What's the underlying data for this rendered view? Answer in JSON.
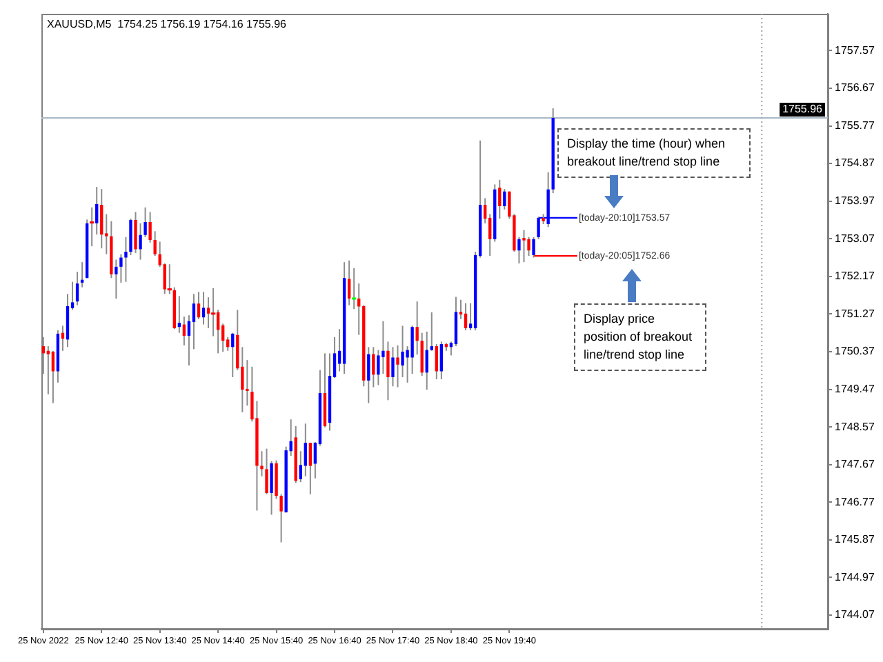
{
  "chart_data": {
    "type": "candlestick",
    "title": "XAUUSD,M5  1754.25 1756.19 1754.16 1755.96",
    "x": [
      "2022-11-25T11:40",
      "2022-11-25T11:45",
      "2022-11-25T11:50",
      "2022-11-25T11:55",
      "2022-11-25T12:00",
      "2022-11-25T12:05",
      "2022-11-25T12:10",
      "2022-11-25T12:15",
      "2022-11-25T12:20",
      "2022-11-25T12:25",
      "2022-11-25T12:30",
      "2022-11-25T12:35",
      "2022-11-25T12:40",
      "2022-11-25T12:45",
      "2022-11-25T12:50",
      "2022-11-25T12:55",
      "2022-11-25T13:00",
      "2022-11-25T13:05",
      "2022-11-25T13:10",
      "2022-11-25T13:15",
      "2022-11-25T13:20",
      "2022-11-25T13:25",
      "2022-11-25T13:30",
      "2022-11-25T13:35",
      "2022-11-25T13:40",
      "2022-11-25T13:45",
      "2022-11-25T13:50",
      "2022-11-25T13:55",
      "2022-11-25T14:00",
      "2022-11-25T14:05",
      "2022-11-25T14:10",
      "2022-11-25T14:15",
      "2022-11-25T14:20",
      "2022-11-25T14:25",
      "2022-11-25T14:30",
      "2022-11-25T14:35",
      "2022-11-25T14:40",
      "2022-11-25T14:45",
      "2022-11-25T14:50",
      "2022-11-25T14:55",
      "2022-11-25T15:00",
      "2022-11-25T15:05",
      "2022-11-25T15:10",
      "2022-11-25T15:15",
      "2022-11-25T15:20",
      "2022-11-25T15:25",
      "2022-11-25T15:30",
      "2022-11-25T15:35",
      "2022-11-25T15:40",
      "2022-11-25T15:45",
      "2022-11-25T15:50",
      "2022-11-25T15:55",
      "2022-11-25T16:00",
      "2022-11-25T16:05",
      "2022-11-25T16:10",
      "2022-11-25T16:15",
      "2022-11-25T16:20",
      "2022-11-25T16:25",
      "2022-11-25T16:30",
      "2022-11-25T16:35",
      "2022-11-25T16:40",
      "2022-11-25T16:45",
      "2022-11-25T16:50",
      "2022-11-25T16:55",
      "2022-11-25T17:00",
      "2022-11-25T17:05",
      "2022-11-25T17:10",
      "2022-11-25T17:15",
      "2022-11-25T17:20",
      "2022-11-25T17:25",
      "2022-11-25T17:30",
      "2022-11-25T17:35",
      "2022-11-25T17:40",
      "2022-11-25T17:45",
      "2022-11-25T17:50",
      "2022-11-25T17:55",
      "2022-11-25T18:00",
      "2022-11-25T18:05",
      "2022-11-25T18:10",
      "2022-11-25T18:15",
      "2022-11-25T18:20",
      "2022-11-25T18:25",
      "2022-11-25T18:30",
      "2022-11-25T18:35",
      "2022-11-25T18:40",
      "2022-11-25T18:45",
      "2022-11-25T18:50",
      "2022-11-25T18:55",
      "2022-11-25T19:00",
      "2022-11-25T19:05",
      "2022-11-25T19:10",
      "2022-11-25T19:15",
      "2022-11-25T19:20",
      "2022-11-25T19:25",
      "2022-11-25T19:30",
      "2022-11-25T19:35",
      "2022-11-25T19:40",
      "2022-11-25T19:45",
      "2022-11-25T19:50",
      "2022-11-25T19:55",
      "2022-11-25T20:00",
      "2022-11-25T20:05",
      "2022-11-25T20:10",
      "2022-11-25T20:15",
      "2022-11-25T20:20",
      "2022-11-25T20:25"
    ],
    "ohlc": [
      [
        1750.5,
        1750.72,
        1749.84,
        1750.33
      ],
      [
        1750.39,
        1750.5,
        1749.35,
        1750.31
      ],
      [
        1750.37,
        1750.39,
        1749.14,
        1749.9
      ],
      [
        1749.9,
        1750.88,
        1749.63,
        1750.8
      ],
      [
        1750.82,
        1750.99,
        1750.39,
        1750.68
      ],
      [
        1750.66,
        1751.75,
        1750.48,
        1751.46
      ],
      [
        1751.41,
        1752.04,
        1751.37,
        1751.55
      ],
      [
        1751.57,
        1752.28,
        1751.48,
        1752.0
      ],
      [
        1752.02,
        1752.51,
        1751.91,
        1752.09
      ],
      [
        1752.13,
        1753.53,
        1752.13,
        1753.44
      ],
      [
        1753.46,
        1753.82,
        1752.89,
        1753.42
      ],
      [
        1753.44,
        1754.31,
        1753.17,
        1753.9
      ],
      [
        1753.88,
        1754.26,
        1752.84,
        1753.17
      ],
      [
        1753.2,
        1753.66,
        1752.7,
        1753.13
      ],
      [
        1753.13,
        1753.49,
        1752.13,
        1752.22
      ],
      [
        1752.22,
        1752.57,
        1751.64,
        1752.4
      ],
      [
        1752.4,
        1752.7,
        1752.02,
        1752.62
      ],
      [
        1752.62,
        1753.11,
        1752.04,
        1752.76
      ],
      [
        1752.76,
        1753.55,
        1752.68,
        1753.52
      ],
      [
        1753.52,
        1753.71,
        1752.73,
        1752.82
      ],
      [
        1752.82,
        1753.44,
        1752.57,
        1753.16
      ],
      [
        1753.16,
        1753.82,
        1753.11,
        1753.47
      ],
      [
        1753.47,
        1753.71,
        1752.98,
        1753.04
      ],
      [
        1753.04,
        1753.25,
        1752.66,
        1752.7
      ],
      [
        1752.7,
        1753.0,
        1752.4,
        1752.44
      ],
      [
        1752.46,
        1752.48,
        1751.75,
        1751.86
      ],
      [
        1751.86,
        1752.46,
        1751.75,
        1751.83
      ],
      [
        1751.84,
        1751.91,
        1750.91,
        1750.93
      ],
      [
        1750.96,
        1751.7,
        1750.82,
        1751.06
      ],
      [
        1751.02,
        1751.21,
        1750.52,
        1750.75
      ],
      [
        1750.75,
        1751.24,
        1750.04,
        1751.1
      ],
      [
        1751.08,
        1751.75,
        1750.43,
        1751.52
      ],
      [
        1751.52,
        1751.8,
        1751.15,
        1751.19
      ],
      [
        1751.19,
        1751.8,
        1751.02,
        1751.42
      ],
      [
        1751.42,
        1751.67,
        1750.93,
        1751.28
      ],
      [
        1751.28,
        1751.89,
        1750.74,
        1751.24
      ],
      [
        1751.31,
        1751.37,
        1750.33,
        1750.89
      ],
      [
        1751.0,
        1751.04,
        1750.37,
        1750.63
      ],
      [
        1750.66,
        1750.72,
        1750.39,
        1750.48
      ],
      [
        1750.48,
        1750.82,
        1749.76,
        1750.8
      ],
      [
        1750.77,
        1751.37,
        1749.93,
        1749.97
      ],
      [
        1750.01,
        1750.48,
        1748.92,
        1749.46
      ],
      [
        1749.48,
        1750.17,
        1749.08,
        1749.43
      ],
      [
        1749.41,
        1750.01,
        1748.7,
        1748.75
      ],
      [
        1748.78,
        1749.19,
        1746.57,
        1747.64
      ],
      [
        1747.64,
        1747.99,
        1747.39,
        1747.56
      ],
      [
        1747.56,
        1748.05,
        1746.96,
        1746.99
      ],
      [
        1746.99,
        1747.75,
        1746.47,
        1747.7
      ],
      [
        1747.7,
        1747.77,
        1746.85,
        1746.92
      ],
      [
        1746.92,
        1746.96,
        1745.81,
        1746.55
      ],
      [
        1746.53,
        1748.1,
        1746.52,
        1748.01
      ],
      [
        1747.99,
        1748.75,
        1747.88,
        1748.23
      ],
      [
        1748.32,
        1748.59,
        1747.23,
        1747.28
      ],
      [
        1747.32,
        1747.99,
        1747.25,
        1747.66
      ],
      [
        1747.64,
        1748.65,
        1747.39,
        1748.19
      ],
      [
        1748.19,
        1748.19,
        1746.96,
        1747.64
      ],
      [
        1747.69,
        1748.21,
        1747.34,
        1748.19
      ],
      [
        1748.16,
        1749.93,
        1748.12,
        1749.38
      ],
      [
        1749.38,
        1750.33,
        1748.56,
        1748.59
      ],
      [
        1748.67,
        1750.33,
        1748.48,
        1749.79
      ],
      [
        1749.76,
        1750.72,
        1749.74,
        1750.33
      ],
      [
        1750.08,
        1750.91,
        1749.9,
        1750.39
      ],
      [
        1750.08,
        1752.51,
        1749.84,
        1752.13
      ],
      [
        1752.11,
        1752.55,
        1751.48,
        1751.64
      ],
      [
        1751.64,
        1752.37,
        1751.39,
        1751.64
      ],
      [
        1751.64,
        1752.0,
        1750.77,
        1751.45
      ],
      [
        1751.46,
        1751.48,
        1749.54,
        1749.68
      ],
      [
        1749.68,
        1750.48,
        1749.14,
        1750.31
      ],
      [
        1750.31,
        1750.48,
        1749.52,
        1749.82
      ],
      [
        1749.82,
        1750.41,
        1749.57,
        1750.28
      ],
      [
        1750.24,
        1751.1,
        1749.84,
        1750.39
      ],
      [
        1750.39,
        1750.61,
        1749.21,
        1749.76
      ],
      [
        1749.76,
        1750.48,
        1749.54,
        1750.23
      ],
      [
        1750.23,
        1750.52,
        1749.52,
        1750.06
      ],
      [
        1750.04,
        1750.99,
        1749.76,
        1750.37
      ],
      [
        1750.23,
        1750.5,
        1749.63,
        1750.41
      ],
      [
        1750.23,
        1750.99,
        1749.84,
        1750.96
      ],
      [
        1750.96,
        1751.57,
        1750.3,
        1750.63
      ],
      [
        1750.63,
        1750.82,
        1749.79,
        1749.87
      ],
      [
        1749.87,
        1750.85,
        1749.46,
        1750.41
      ],
      [
        1750.41,
        1751.31,
        1750.39,
        1750.5
      ],
      [
        1750.5,
        1750.55,
        1749.71,
        1749.9
      ],
      [
        1749.9,
        1750.61,
        1749.71,
        1750.55
      ],
      [
        1750.55,
        1750.58,
        1750.39,
        1750.48
      ],
      [
        1750.48,
        1750.61,
        1750.28,
        1750.58
      ],
      [
        1750.55,
        1751.68,
        1750.5,
        1751.32
      ],
      [
        1751.32,
        1751.61,
        1751.15,
        1751.26
      ],
      [
        1751.28,
        1751.53,
        1750.88,
        1750.93
      ],
      [
        1750.93,
        1751.53,
        1750.88,
        1751.04
      ],
      [
        1750.93,
        1752.76,
        1750.88,
        1752.68
      ],
      [
        1752.66,
        1755.42,
        1752.62,
        1753.88
      ],
      [
        1753.88,
        1754.04,
        1753.44,
        1753.55
      ],
      [
        1753.57,
        1753.66,
        1752.66,
        1753.06
      ],
      [
        1753.06,
        1754.37,
        1753.0,
        1754.25
      ],
      [
        1754.29,
        1754.48,
        1753.55,
        1753.85
      ],
      [
        1753.85,
        1754.26,
        1753.77,
        1754.2
      ],
      [
        1754.2,
        1754.2,
        1753.55,
        1753.6
      ],
      [
        1753.63,
        1753.66,
        1752.76,
        1752.79
      ],
      [
        1752.79,
        1753.11,
        1752.48,
        1753.06
      ],
      [
        1753.09,
        1753.28,
        1752.51,
        1753.03
      ],
      [
        1753.06,
        1753.11,
        1752.66,
        1752.79
      ],
      [
        1752.68,
        1753.11,
        1752.62,
        1753.06
      ],
      [
        1753.11,
        1753.6,
        1753.06,
        1753.57
      ],
      [
        1753.57,
        1753.66,
        1753.42,
        1753.49
      ],
      [
        1753.42,
        1754.66,
        1753.35,
        1754.25
      ],
      [
        1754.25,
        1756.19,
        1754.16,
        1755.96
      ]
    ],
    "colors": [
      "#ff0000",
      "#ff0000",
      "#ff0000",
      "#0000ff",
      "#ff0000",
      "#0000ff",
      "#0000ff",
      "#0000ff",
      "#0000ff",
      "#0000ff",
      "#ff0000",
      "#0000ff",
      "#ff0000",
      "#ff0000",
      "#ff0000",
      "#0000ff",
      "#0000ff",
      "#0000ff",
      "#0000ff",
      "#ff0000",
      "#0000ff",
      "#0000ff",
      "#ff0000",
      "#ff0000",
      "#ff0000",
      "#ff0000",
      "#ff0000",
      "#ff0000",
      "#0000ff",
      "#ff0000",
      "#0000ff",
      "#0000ff",
      "#ff0000",
      "#0000ff",
      "#ff0000",
      "#ff0000",
      "#ff0000",
      "#ff0000",
      "#ff0000",
      "#0000ff",
      "#ff0000",
      "#ff0000",
      "#ff0000",
      "#ff0000",
      "#ff0000",
      "#ff0000",
      "#ff0000",
      "#0000ff",
      "#ff0000",
      "#ff0000",
      "#0000ff",
      "#0000ff",
      "#ff0000",
      "#0000ff",
      "#0000ff",
      "#ff0000",
      "#0000ff",
      "#0000ff",
      "#ff0000",
      "#0000ff",
      "#0000ff",
      "#0000ff",
      "#0000ff",
      "#ff0000",
      "#00ff00",
      "#ff0000",
      "#ff0000",
      "#0000ff",
      "#ff0000",
      "#0000ff",
      "#0000ff",
      "#ff0000",
      "#0000ff",
      "#ff0000",
      "#0000ff",
      "#0000ff",
      "#0000ff",
      "#ff0000",
      "#ff0000",
      "#0000ff",
      "#0000ff",
      "#ff0000",
      "#0000ff",
      "#ff0000",
      "#0000ff",
      "#0000ff",
      "#ff0000",
      "#ff0000",
      "#0000ff",
      "#0000ff",
      "#0000ff",
      "#ff0000",
      "#ff0000",
      "#0000ff",
      "#ff0000",
      "#0000ff",
      "#ff0000",
      "#ff0000",
      "#0000ff",
      "#ff0000",
      "#ff0000",
      "#0000ff",
      "#0000ff",
      "#ff0000",
      "#0000ff",
      "#0000ff"
    ],
    "series": [
      {
        "type": "line",
        "x": [
          "2022-11-25T20:10",
          "2022-11-25T20:50"
        ],
        "values": [
          1753.57,
          1753.57
        ],
        "color": "#0000ff"
      },
      {
        "type": "line",
        "x": [
          "2022-11-25T20:05",
          "2022-11-25T20:50"
        ],
        "values": [
          1752.66,
          1752.66
        ],
        "color": "#ff0000"
      }
    ],
    "annotations": [
      {
        "text": "[today-20:10]1753.57",
        "x": "2022-11-25T20:50",
        "y": 1753.57
      },
      {
        "text": "[today-20:05]1752.66",
        "x": "2022-11-25T20:50",
        "y": 1752.66
      },
      "Display the time (hour)  when breakout line/trend stop line",
      "Display price position of breakout line/trend stop line"
    ],
    "ref_lines": [
      {
        "axis": "y",
        "value": 1755.96,
        "label": "1755.96",
        "color": "#a8b8c8",
        "line_style": "solid"
      },
      {
        "axis": "x",
        "value": "2022-11-26T00:00",
        "color": "#a0a0a0",
        "line_style": "dotted"
      }
    ],
    "xlim": [
      "2022-11-25T11:38",
      "2022-11-26T01:08"
    ],
    "xticks": [
      {
        "value": "2022-11-25T11:40",
        "label": "25 Nov 2022"
      },
      {
        "value": "2022-11-25T12:40",
        "label": "25 Nov 12:40"
      },
      {
        "value": "2022-11-25T13:40",
        "label": "25 Nov 13:40"
      },
      {
        "value": "2022-11-25T14:40",
        "label": "25 Nov 14:40"
      },
      {
        "value": "2022-11-25T15:40",
        "label": "25 Nov 15:40"
      },
      {
        "value": "2022-11-25T16:40",
        "label": "25 Nov 16:40"
      },
      {
        "value": "2022-11-25T17:40",
        "label": "25 Nov 17:40"
      },
      {
        "value": "2022-11-25T18:40",
        "label": "25 Nov 18:40"
      },
      {
        "value": "2022-11-25T19:40",
        "label": "25 Nov 19:40"
      }
    ],
    "ylim": [
      1743.74,
      1758.45
    ],
    "yticks": [
      1757.57,
      1756.67,
      1755.77,
      1754.87,
      1753.97,
      1753.07,
      1752.17,
      1751.27,
      1750.37,
      1749.47,
      1748.57,
      1747.67,
      1746.77,
      1745.87,
      1744.97,
      1744.07
    ],
    "grid": false,
    "legend": false
  }
}
